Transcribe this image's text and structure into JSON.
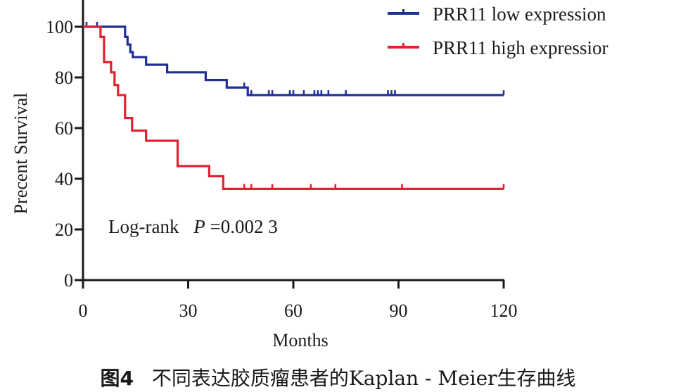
{
  "chart_data": {
    "type": "line",
    "subtype": "kaplan-meier",
    "xlabel": "Months",
    "ylabel": "Precent Survival",
    "xlim": [
      0,
      120
    ],
    "ylim": [
      0,
      100
    ],
    "x_ticks": [
      0,
      30,
      60,
      90,
      120
    ],
    "y_ticks": [
      0,
      20,
      40,
      60,
      80,
      100
    ],
    "grid": false,
    "legend_position": "top-right",
    "annotation": {
      "prefix": "Log-rank",
      "p_symbol": "P",
      "p_value": "=0.002 3"
    },
    "series": [
      {
        "name": "PRR11 low expression",
        "color": "#1f2f96",
        "steps": [
          [
            0,
            100
          ],
          [
            12,
            96
          ],
          [
            12.7,
            93
          ],
          [
            13.5,
            90
          ],
          [
            14.2,
            88
          ],
          [
            18,
            85
          ],
          [
            24,
            82
          ],
          [
            35,
            79
          ],
          [
            41,
            76
          ],
          [
            47,
            73
          ],
          [
            120,
            73
          ]
        ],
        "censored": [
          [
            1,
            100
          ],
          [
            4,
            100
          ],
          [
            46,
            76
          ],
          [
            48,
            73
          ],
          [
            53,
            73
          ],
          [
            54,
            73
          ],
          [
            59,
            73
          ],
          [
            60,
            73
          ],
          [
            63,
            73
          ],
          [
            66,
            73
          ],
          [
            67,
            73
          ],
          [
            68,
            73
          ],
          [
            70,
            73
          ],
          [
            75,
            73
          ],
          [
            87,
            73
          ],
          [
            88,
            73
          ],
          [
            89,
            73
          ],
          [
            120,
            73
          ]
        ]
      },
      {
        "name": "PRR11 high expressior",
        "color": "#e02230",
        "steps": [
          [
            0,
            100
          ],
          [
            5,
            96
          ],
          [
            6,
            86
          ],
          [
            8,
            82
          ],
          [
            9,
            77
          ],
          [
            10,
            73
          ],
          [
            12,
            64
          ],
          [
            14,
            59
          ],
          [
            18,
            55
          ],
          [
            27,
            45
          ],
          [
            36,
            41
          ],
          [
            40,
            36
          ],
          [
            120,
            36
          ]
        ],
        "censored": [
          [
            46,
            36
          ],
          [
            48,
            36
          ],
          [
            54,
            36
          ],
          [
            65,
            36
          ],
          [
            72,
            36
          ],
          [
            91,
            36
          ],
          [
            120,
            36
          ]
        ]
      }
    ]
  },
  "caption": {
    "figure_label": "图4",
    "text": "不同表达胶质瘤患者的Kaplan - Meier生存曲线"
  }
}
